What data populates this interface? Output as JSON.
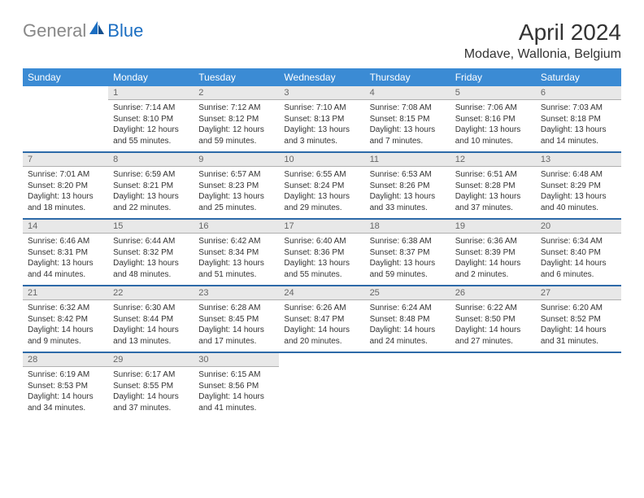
{
  "logo": {
    "gray": "General",
    "blue": "Blue"
  },
  "title": "April 2024",
  "location": "Modave, Wallonia, Belgium",
  "colors": {
    "header_bg": "#3b8bd4",
    "daynum_bg": "#e8e8e8",
    "row_divider": "#2d6aa8",
    "logo_gray": "#888888",
    "logo_blue": "#1b6ec2"
  },
  "day_headers": [
    "Sunday",
    "Monday",
    "Tuesday",
    "Wednesday",
    "Thursday",
    "Friday",
    "Saturday"
  ],
  "weeks": [
    {
      "nums": [
        "",
        "1",
        "2",
        "3",
        "4",
        "5",
        "6"
      ],
      "cells": [
        null,
        {
          "sr": "7:14 AM",
          "ss": "8:10 PM",
          "dl": "12 hours and 55 minutes."
        },
        {
          "sr": "7:12 AM",
          "ss": "8:12 PM",
          "dl": "12 hours and 59 minutes."
        },
        {
          "sr": "7:10 AM",
          "ss": "8:13 PM",
          "dl": "13 hours and 3 minutes."
        },
        {
          "sr": "7:08 AM",
          "ss": "8:15 PM",
          "dl": "13 hours and 7 minutes."
        },
        {
          "sr": "7:06 AM",
          "ss": "8:16 PM",
          "dl": "13 hours and 10 minutes."
        },
        {
          "sr": "7:03 AM",
          "ss": "8:18 PM",
          "dl": "13 hours and 14 minutes."
        }
      ]
    },
    {
      "nums": [
        "7",
        "8",
        "9",
        "10",
        "11",
        "12",
        "13"
      ],
      "cells": [
        {
          "sr": "7:01 AM",
          "ss": "8:20 PM",
          "dl": "13 hours and 18 minutes."
        },
        {
          "sr": "6:59 AM",
          "ss": "8:21 PM",
          "dl": "13 hours and 22 minutes."
        },
        {
          "sr": "6:57 AM",
          "ss": "8:23 PM",
          "dl": "13 hours and 25 minutes."
        },
        {
          "sr": "6:55 AM",
          "ss": "8:24 PM",
          "dl": "13 hours and 29 minutes."
        },
        {
          "sr": "6:53 AM",
          "ss": "8:26 PM",
          "dl": "13 hours and 33 minutes."
        },
        {
          "sr": "6:51 AM",
          "ss": "8:28 PM",
          "dl": "13 hours and 37 minutes."
        },
        {
          "sr": "6:48 AM",
          "ss": "8:29 PM",
          "dl": "13 hours and 40 minutes."
        }
      ]
    },
    {
      "nums": [
        "14",
        "15",
        "16",
        "17",
        "18",
        "19",
        "20"
      ],
      "cells": [
        {
          "sr": "6:46 AM",
          "ss": "8:31 PM",
          "dl": "13 hours and 44 minutes."
        },
        {
          "sr": "6:44 AM",
          "ss": "8:32 PM",
          "dl": "13 hours and 48 minutes."
        },
        {
          "sr": "6:42 AM",
          "ss": "8:34 PM",
          "dl": "13 hours and 51 minutes."
        },
        {
          "sr": "6:40 AM",
          "ss": "8:36 PM",
          "dl": "13 hours and 55 minutes."
        },
        {
          "sr": "6:38 AM",
          "ss": "8:37 PM",
          "dl": "13 hours and 59 minutes."
        },
        {
          "sr": "6:36 AM",
          "ss": "8:39 PM",
          "dl": "14 hours and 2 minutes."
        },
        {
          "sr": "6:34 AM",
          "ss": "8:40 PM",
          "dl": "14 hours and 6 minutes."
        }
      ]
    },
    {
      "nums": [
        "21",
        "22",
        "23",
        "24",
        "25",
        "26",
        "27"
      ],
      "cells": [
        {
          "sr": "6:32 AM",
          "ss": "8:42 PM",
          "dl": "14 hours and 9 minutes."
        },
        {
          "sr": "6:30 AM",
          "ss": "8:44 PM",
          "dl": "14 hours and 13 minutes."
        },
        {
          "sr": "6:28 AM",
          "ss": "8:45 PM",
          "dl": "14 hours and 17 minutes."
        },
        {
          "sr": "6:26 AM",
          "ss": "8:47 PM",
          "dl": "14 hours and 20 minutes."
        },
        {
          "sr": "6:24 AM",
          "ss": "8:48 PM",
          "dl": "14 hours and 24 minutes."
        },
        {
          "sr": "6:22 AM",
          "ss": "8:50 PM",
          "dl": "14 hours and 27 minutes."
        },
        {
          "sr": "6:20 AM",
          "ss": "8:52 PM",
          "dl": "14 hours and 31 minutes."
        }
      ]
    },
    {
      "nums": [
        "28",
        "29",
        "30",
        "",
        "",
        "",
        ""
      ],
      "cells": [
        {
          "sr": "6:19 AM",
          "ss": "8:53 PM",
          "dl": "14 hours and 34 minutes."
        },
        {
          "sr": "6:17 AM",
          "ss": "8:55 PM",
          "dl": "14 hours and 37 minutes."
        },
        {
          "sr": "6:15 AM",
          "ss": "8:56 PM",
          "dl": "14 hours and 41 minutes."
        },
        null,
        null,
        null,
        null
      ]
    }
  ],
  "labels": {
    "sunrise": "Sunrise:",
    "sunset": "Sunset:",
    "daylight": "Daylight:"
  }
}
